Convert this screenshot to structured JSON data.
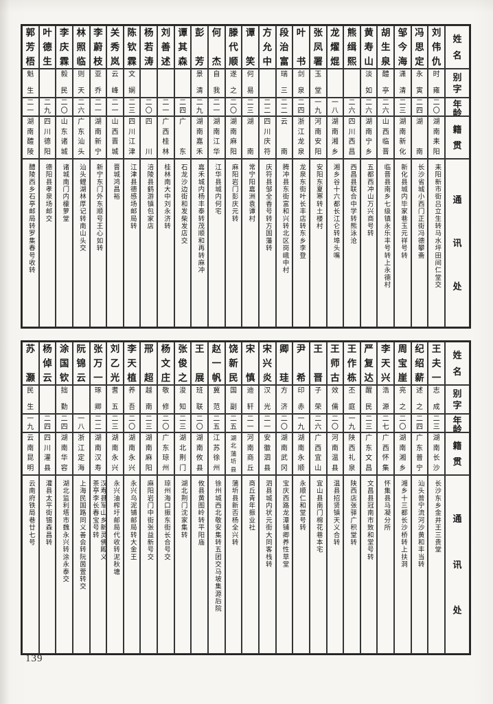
{
  "page_number": "139",
  "headers": {
    "name": "姓名",
    "zi": "别字",
    "age": "年龄",
    "native": "籍贯",
    "contact": "通讯处"
  },
  "tables": [
    {
      "entries": [
        {
          "name": "刘伟仇",
          "zi": "时雍",
          "age": "二〇",
          "native": "湖南耒阳",
          "contact": "耒阳新市街吕立生转马水坪田间仁堂交"
        },
        {
          "name": "冯思定",
          "zi": "永寅",
          "age": "二四",
          "native": "湖南",
          "contact": "长沙省城小西门正街冯德攀斋"
        },
        {
          "name": "邹今海",
          "zi": "潇清",
          "age": "二三",
          "native": "湖南新化",
          "contact": "新化县城内毕家巷玉元祥号转"
        },
        {
          "name": "胡生泉",
          "zi": "醴亭",
          "age": "二六",
          "native": "山西临晋",
          "contact": "临晋县南乡七级镇永乐丰号转上永德村"
        },
        {
          "name": "黄寿山",
          "zi": "淡如",
          "age": "二六",
          "native": "湖南宁乡",
          "contact": "五都西冲山万兴商号转"
        },
        {
          "name": "熊缉熙",
          "zi": "",
          "age": "二六",
          "native": "四川西昌",
          "contact": "西昌县联合中学转熊泳沧"
        },
        {
          "name": "龙燿焜",
          "zi": "",
          "age": "一八",
          "native": "湖南湘乡",
          "contact": "湘乡谷十六都长江仑转埠头嘴"
        },
        {
          "name": "张凤署",
          "zi": "玉堂",
          "age": "一九",
          "native": "河南安阳",
          "contact": "安阳东夏寒转土楼村"
        },
        {
          "name": "叶书",
          "zi": "剑泉",
          "age": "二四",
          "native": "浙江龙泉",
          "contact": "龙泉东街叶长丰店转东乡李登"
        },
        {
          "name": "段治富",
          "zi": "瑞三",
          "age": "二二",
          "native": "云南",
          "contact": "腾冲县东街富和兴转北区岗峨中村"
        },
        {
          "name": "方允中",
          "zi": "",
          "age": "二二",
          "native": "四川庆符",
          "contact": "庆符县邹全香号转方国藩转"
        },
        {
          "name": "谭笑",
          "zi": "何易",
          "age": "二三",
          "native": "湖南",
          "contact": "常宁阳嘉洲袁谭村"
        },
        {
          "name": "滕代顺",
          "zi": "遂之",
          "age": "二〇",
          "native": "湖南麻阳",
          "contact": "麻阳岩门彭庆元转"
        },
        {
          "name": "何杰",
          "zi": "自我",
          "age": "二一",
          "native": "湖南江华",
          "contact": "江华县城内何宅"
        },
        {
          "name": "彭芳",
          "zi": "景清",
          "age": "二九",
          "native": "湖南嘉禾",
          "contact": "嘉禾城内杨丰泰转茂顺和再转麻冲"
        },
        {
          "name": "谭其森",
          "zi": "",
          "age": "二四",
          "native": "广东",
          "contact": "石龙沙边街和发柴发店交"
        },
        {
          "name": "刘善述",
          "zi": "",
          "age": "二一",
          "native": "广西桂林",
          "contact": "桂林南大中刘永济转"
        },
        {
          "name": "杨若涛",
          "zi": "",
          "age": "二〇",
          "native": "四川",
          "contact": "涪陵县鹤游镇包家店"
        },
        {
          "name": "陈钦霖",
          "zi": "文娴",
          "age": "二三",
          "native": "四川江津",
          "contact": "江津县德感场邮局转"
        },
        {
          "name": "关秀岚",
          "zi": "云峰",
          "age": "二一",
          "native": "山西晋城",
          "contact": "晋城鸿昌裕"
        },
        {
          "name": "李蔚枝",
          "zi": "亚乔",
          "age": "二一",
          "native": "湖南新宁",
          "contact": "新宁东门外东顺号王心如转"
        },
        {
          "name": "林照临",
          "zi": "则天",
          "age": "二六",
          "native": "广东汕头",
          "contact": "汕头鲤湖林厚记转南山头交"
        },
        {
          "name": "李庆霖",
          "zi": "毅民",
          "age": "二〇",
          "native": "山东诸城",
          "contact": "诸城南门内檬萝堂"
        },
        {
          "name": "叶德生",
          "zi": "",
          "age": "二九",
          "native": "四川德阳",
          "contact": "德阳县孝泉场邮交"
        },
        {
          "name": "郭芳梧",
          "zi": "魁生",
          "age": "二一",
          "native": "湖南醴陵",
          "contact": "醴陵西乡石亭邮局转罗集春号收转"
        }
      ]
    },
    {
      "entries": [
        {
          "name": "王夫一",
          "zi": "志成",
          "age": "二三",
          "native": "湖南长沙",
          "contact": "长沙东乡金井王三贵堂"
        },
        {
          "name": "纪绍薪",
          "zi": "述之",
          "age": "二四",
          "native": "广东普宁",
          "contact": "汕头普宁流河沙黄和丰当转"
        },
        {
          "name": "周宝崖",
          "zi": "亮之",
          "age": "二〇",
          "native": "湖南湘乡",
          "contact": "湘乡十三都长沙桥转上扶洞"
        },
        {
          "name": "李天兴",
          "zi": "浩源",
          "age": "二七",
          "native": "广西怀集",
          "contact": "怀集县马凝分所"
        },
        {
          "name": "严复达",
          "zi": "醒民",
          "age": "二三",
          "native": "广东文昌",
          "contact": "文昌县冠南市致和堂号转"
        },
        {
          "name": "王作栋",
          "zi": "丕庭",
          "age": "一九",
          "native": "陕西礼泉",
          "contact": "陕西店张驿广积堂转"
        },
        {
          "name": "王师古",
          "zi": "效儒",
          "age": "二〇",
          "native": "河南温县",
          "contact": "温县招贤镇天义合转"
        },
        {
          "name": "王晋",
          "zi": "子荣",
          "age": "二六",
          "native": "广西宜山",
          "contact": "宜山县南门棉花巷本宅"
        },
        {
          "name": "尹希",
          "zi": "印赤",
          "age": "一九",
          "native": "湖南永顺",
          "contact": "永顺仁和堂号转"
        },
        {
          "name": "卿珪",
          "zi": "方济",
          "age": "二〇",
          "native": "湖南武冈",
          "contact": "宝庆西路龙潭铺卿养性草堂"
        },
        {
          "name": "宋兴炎",
          "zi": "汉光",
          "age": "二一",
          "native": "安徽泗县",
          "contact": "泗县城内状元街大同客栈转"
        },
        {
          "name": "宋慎",
          "zi": "迪轩",
          "age": "二一",
          "native": "河南商丘",
          "contact": "商丘青年振业社"
        },
        {
          "name": "饶新民",
          "zi": "国副",
          "age": "二五",
          "native": "湖北蒲圻县",
          "contact": "蒲圻县新否杨全兴转"
        },
        {
          "name": "赵一帆",
          "zi": "冀范",
          "age": "二五",
          "native": "江苏徐州",
          "contact": "徐州城西北敬安集转五团交马坡集源后院"
        },
        {
          "name": "王展",
          "zi": "班联",
          "age": "二〇",
          "native": "湖南攸县",
          "contact": "攸县黄图岭转平阳庙"
        },
        {
          "name": "张俊之",
          "zi": "浚知",
          "age": "二三",
          "native": "湖北荆门",
          "contact": "湖北荆门沈家集转"
        },
        {
          "name": "杨文庄",
          "zi": "敬修",
          "age": "二〇",
          "native": "广东琼州",
          "contact": "琼州海口振东街长合号交"
        },
        {
          "name": "邢超",
          "zi": "越南",
          "age": "二三",
          "native": "湖南麻阳",
          "contact": "麻阳岩门中街张益新号交"
        },
        {
          "name": "李天植",
          "zi": "养吾",
          "age": "二〇",
          "native": "湖南永兴",
          "contact": "永兴乌泥铺邮局转大金王"
        },
        {
          "name": "刘乙光",
          "zi": "耆五",
          "age": "二三",
          "native": "湖南永兴",
          "contact": "永兴油榨圩邮局代收转泥秋塘"
        },
        {
          "name": "张万一",
          "zi": "琢卿",
          "age": "二二",
          "native": "湖南汉寿",
          "contact": "汉寿县军山乡新灵佛殿义茶亭李长春宝号转"
        },
        {
          "name": "阮锦云",
          "zi": "",
          "age": "一八",
          "native": "浙江定海",
          "contact": "上海民国路同义善会转阮茵萱转交"
        },
        {
          "name": "涂国钦",
          "zi": "拙勤",
          "age": "二四",
          "native": "湖南华容",
          "contact": "湖北监利塔市魏永兴转涂永泰交"
        },
        {
          "name": "杨倬云",
          "zi": "",
          "age": "二四",
          "native": "四川灌县",
          "contact": "灌县太平街锡森昌转"
        },
        {
          "name": "苏灏",
          "zi": "民生",
          "age": "一九",
          "native": "云南昆明",
          "contact": "云南府铁局巷廿七号"
        }
      ]
    }
  ]
}
